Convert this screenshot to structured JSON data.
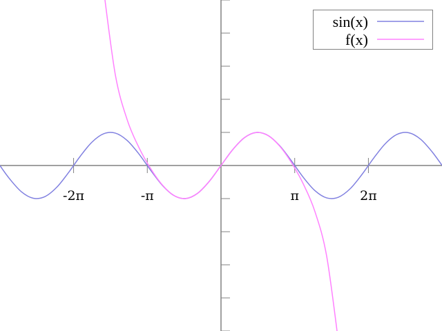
{
  "chart_data": {
    "type": "line",
    "title": "",
    "xlabel": "",
    "ylabel": "",
    "xlim": [
      -9.42,
      9.42
    ],
    "ylim": [
      -5,
      5
    ],
    "grid": false,
    "legend_position": "top-right",
    "x_ticks": [
      {
        "value": -6.2832,
        "label": "-2π"
      },
      {
        "value": -3.1416,
        "label": "-π"
      },
      {
        "value": 3.1416,
        "label": "π"
      },
      {
        "value": 6.2832,
        "label": "2π"
      }
    ],
    "y_ticks": [
      -5,
      -4,
      -3,
      -2,
      -1,
      1,
      2,
      3,
      4,
      5
    ],
    "series": [
      {
        "name": "sin(x)",
        "color": "#8080e0",
        "x": [
          -9.42,
          -9,
          -8.5,
          -8,
          -7.5,
          -7,
          -6.5,
          -6,
          -5.5,
          -5,
          -4.5,
          -4,
          -3.5,
          -3,
          -2.5,
          -2,
          -1.5,
          -1,
          -0.5,
          0,
          0.5,
          1,
          1.5,
          2,
          2.5,
          3,
          3.5,
          4,
          4.5,
          5,
          5.5,
          6,
          6.5,
          7,
          7.5,
          8,
          8.5,
          9,
          9.42
        ],
        "y": [
          -0.005,
          -0.412,
          -0.798,
          -0.989,
          -0.938,
          -0.657,
          -0.215,
          0.279,
          0.706,
          0.959,
          0.978,
          0.757,
          0.351,
          -0.141,
          -0.598,
          -0.909,
          -0.997,
          -0.841,
          -0.479,
          0,
          0.479,
          0.841,
          0.997,
          0.909,
          0.598,
          0.141,
          -0.351,
          -0.757,
          -0.978,
          -0.959,
          -0.706,
          -0.279,
          0.215,
          0.657,
          0.938,
          0.989,
          0.798,
          0.412,
          0.005
        ]
      },
      {
        "name": "f(x)",
        "color": "#ff80ff",
        "x": [
          -5,
          -4.5,
          -4,
          -3.5,
          -3,
          -2.5,
          -2,
          -1.5,
          -1,
          -0.5,
          0,
          0.5,
          1,
          1.5,
          2,
          2.5,
          3,
          3.5,
          4,
          4.5,
          5
        ],
        "y": [
          5.2926,
          2.7243,
          1.3842,
          0.5456,
          -0.0911,
          -0.5885,
          -0.9079,
          -0.9974,
          -0.8415,
          -0.4794,
          0,
          0.4794,
          0.8415,
          0.9974,
          0.9079,
          0.5885,
          0.0911,
          -0.5456,
          -1.3842,
          -2.7243,
          -5.2926
        ]
      }
    ]
  }
}
